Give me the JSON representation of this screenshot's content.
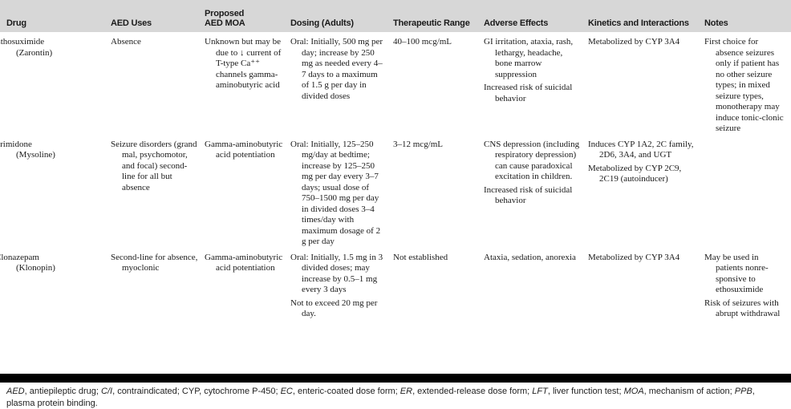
{
  "colors": {
    "header_bg": "#d7d7d7",
    "bar_color": "#000000",
    "text_color": "#1a1a1a"
  },
  "table": {
    "columns": [
      {
        "key": "drug",
        "label": "Drug"
      },
      {
        "key": "uses",
        "label": "AED Uses"
      },
      {
        "key": "moa",
        "label": "Proposed\nAED MOA"
      },
      {
        "key": "dosing",
        "label": "Dosing (Adults)"
      },
      {
        "key": "range",
        "label": "Therapeutic Range"
      },
      {
        "key": "adverse",
        "label": "Adverse Effects"
      },
      {
        "key": "kinetics",
        "label": "Kinetics and Interactions"
      },
      {
        "key": "notes",
        "label": "Notes"
      }
    ],
    "rows": [
      {
        "drug_name": "Ethosuximide",
        "drug_brand": "(Zarontin)",
        "uses": [
          "Absence"
        ],
        "moa": [
          "Unknown but may be due to ↓ current of T-type Ca⁺⁺ channels gamma-aminobutyric acid"
        ],
        "dosing": [
          "Oral: Initially, 500 mg per day; increase by 250 mg as needed every 4–7 days to a maximum of 1.5 g per day in divided doses"
        ],
        "range": [
          "40–100 mcg/mL"
        ],
        "adverse": [
          "GI irritation, ataxia, rash, lethargy, headache, bone marrow suppression",
          "Increased risk of suicidal behavior"
        ],
        "kinetics": [
          "Metabolized by CYP 3A4"
        ],
        "notes": [
          "First choice for absence seizures only if patient has no other seizure types; in mixed seizure types, monotherapy may induce tonic-clonic seizure"
        ]
      },
      {
        "drug_name": "Primidone",
        "drug_brand": "(Mysoline)",
        "uses": [
          "Seizure disorders (grand mal, psychomotor, and focal) second-line for all but absence"
        ],
        "moa": [
          "Gamma-aminobutyric acid potentiation"
        ],
        "dosing": [
          "Oral: Initially, 125–250 mg/day at bedtime; increase by 125–250 mg per day every 3–7 days; usual dose of 750–1500 mg per day in divided doses 3–4 times/day with maximum dosage of 2 g per day"
        ],
        "range": [
          "3–12 mcg/mL"
        ],
        "adverse": [
          "CNS depression (including respiratory depression) can cause paradoxical excitation in children.",
          "Increased risk of suicidal behavior"
        ],
        "kinetics": [
          "Induces CYP 1A2, 2C family, 2D6, 3A4, and UGT",
          "Metabolized by CYP 2C9, 2C19 (autoinducer)"
        ],
        "notes": []
      },
      {
        "drug_name": "Clonazepam",
        "drug_brand": "(Klonopin)",
        "uses": [
          "Second-line for absence, myoclonic"
        ],
        "moa": [
          "Gamma-aminobutyric acid potentiation"
        ],
        "dosing": [
          "Oral: Initially, 1.5 mg in 3 divided doses; may increase by 0.5–1 mg every 3 days",
          "Not to exceed 20 mg per day."
        ],
        "range": [
          "Not established"
        ],
        "adverse": [
          "Ataxia, sedation, anorexia"
        ],
        "kinetics": [
          "Metabolized by CYP 3A4"
        ],
        "notes": [
          "May be used in patients nonre-sponsive to ethosuximide",
          "Risk of seizures with abrupt withdrawal"
        ]
      }
    ]
  },
  "footnote": {
    "segments": [
      {
        "text": "AED",
        "italic": true
      },
      {
        "text": ", antiepileptic drug; ",
        "italic": false
      },
      {
        "text": "C/I",
        "italic": true
      },
      {
        "text": ", contraindicated; CYP, cytochrome P-450; ",
        "italic": false
      },
      {
        "text": "EC",
        "italic": true
      },
      {
        "text": ", enteric-coated dose form; ",
        "italic": false
      },
      {
        "text": "ER",
        "italic": true
      },
      {
        "text": ", extended-release dose form; ",
        "italic": false
      },
      {
        "text": "LFT",
        "italic": true
      },
      {
        "text": ", liver function test; ",
        "italic": false
      },
      {
        "text": "MOA",
        "italic": true
      },
      {
        "text": ", mechanism of action; ",
        "italic": false
      },
      {
        "text": "PPB",
        "italic": true
      },
      {
        "text": ", plasma protein binding.",
        "italic": false
      }
    ]
  }
}
